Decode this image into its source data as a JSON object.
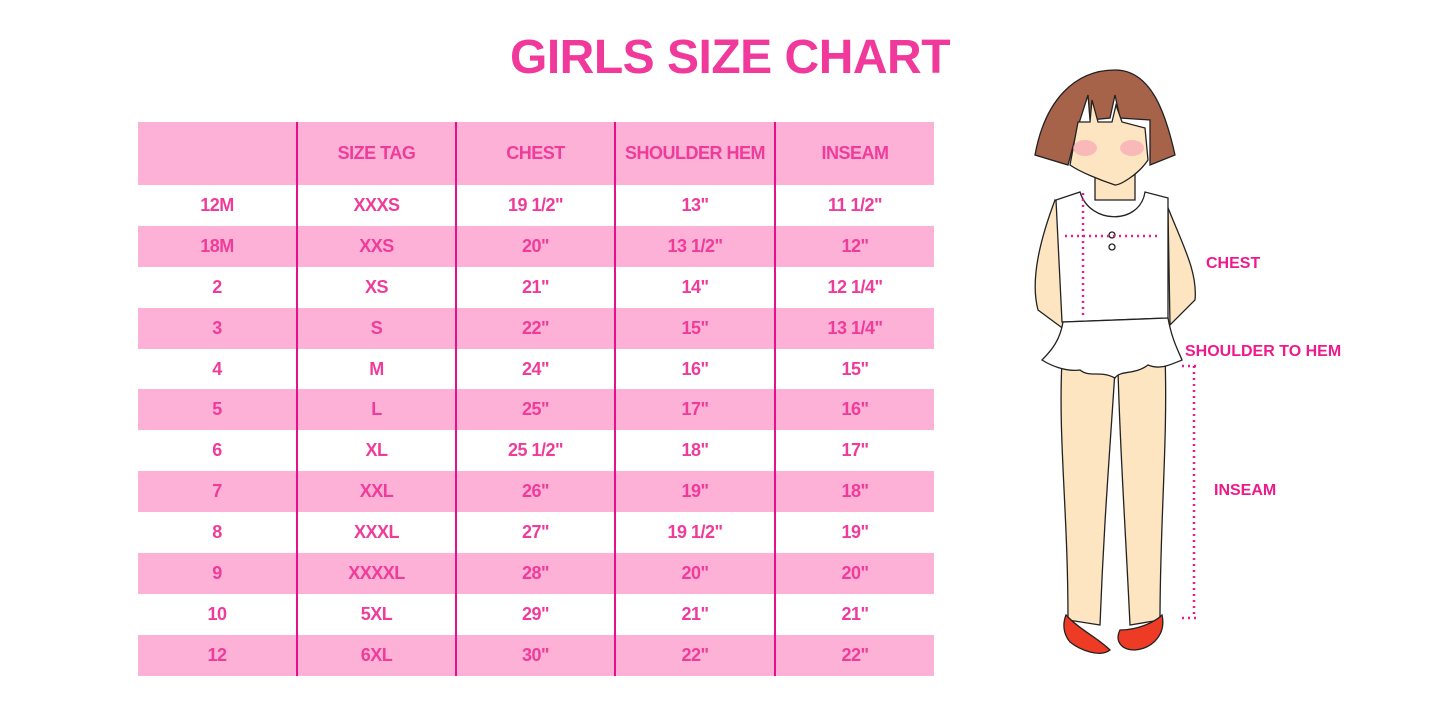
{
  "title": "GIRLS SIZE CHART",
  "table": {
    "headers": [
      "",
      "SIZE TAG",
      "CHEST",
      "SHOULDER HEM",
      "INSEAM"
    ],
    "rows": [
      [
        "12M",
        "XXXS",
        "19 1/2\"",
        "13\"",
        "11 1/2\""
      ],
      [
        "18M",
        "XXS",
        "20\"",
        "13 1/2\"",
        "12\""
      ],
      [
        "2",
        "XS",
        "21\"",
        "14\"",
        "12 1/4\""
      ],
      [
        "3",
        "S",
        "22\"",
        "15\"",
        "13 1/4\""
      ],
      [
        "4",
        "M",
        "24\"",
        "16\"",
        "15\""
      ],
      [
        "5",
        "L",
        "25\"",
        "17\"",
        "16\""
      ],
      [
        "6",
        "XL",
        "25 1/2\"",
        "18\"",
        "17\""
      ],
      [
        "7",
        "XXL",
        "26\"",
        "19\"",
        "18\""
      ],
      [
        "8",
        "XXXL",
        "27\"",
        "19 1/2\"",
        "19\""
      ],
      [
        "9",
        "XXXXL",
        "28\"",
        "20\"",
        "20\""
      ],
      [
        "10",
        "5XL",
        "29\"",
        "21\"",
        "21\""
      ],
      [
        "12",
        "6XL",
        "30\"",
        "22\"",
        "22\""
      ]
    ]
  },
  "figure": {
    "labels": {
      "chest": "CHEST",
      "shoulder": "SHOULDER TO HEM",
      "inseam": "INSEAM"
    }
  },
  "colors": {
    "accent": "#ef3c9a",
    "row_pink": "#fdb1d6",
    "divider": "#e5108a"
  }
}
